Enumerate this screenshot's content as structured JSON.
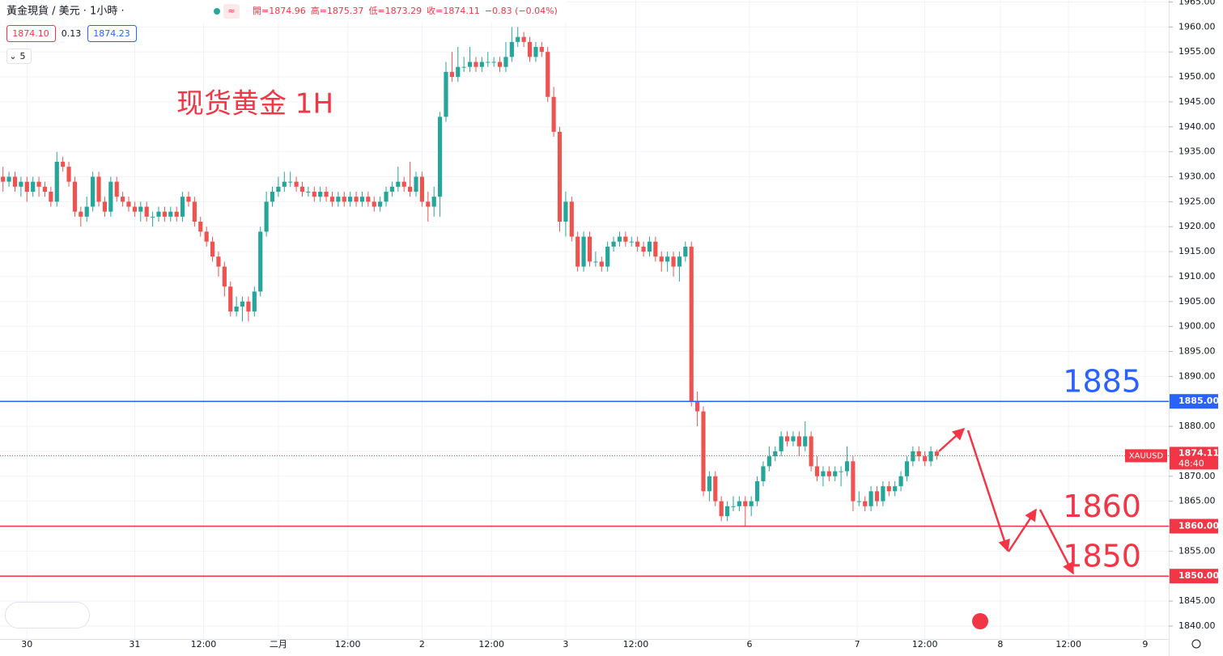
{
  "chart_data": {
    "type": "candlestick",
    "symbol": "黃金現貨 / 美元 · 1小時 ·",
    "ohlc_header": [
      {
        "label": "開=1874.96"
      },
      {
        "label": "高=1875.37"
      },
      {
        "label": "低=1873.29"
      },
      {
        "label": "收=1874.11"
      },
      {
        "label": "−0.83 (−0.04%)"
      }
    ],
    "bid": "1874.10",
    "spread": "0.13",
    "ask": "1874.23",
    "indicator_count": "5",
    "annotation": "现货黄金 1H",
    "up_color": "#26a69a",
    "down_color": "#ef5350",
    "ylim": [
      1837.4,
      1965.4
    ],
    "yticks": [
      {
        "value": 1840,
        "label": "1840.00"
      },
      {
        "value": 1845,
        "label": "1845.00"
      },
      {
        "value": 1850,
        "label": "1850.00"
      },
      {
        "value": 1855,
        "label": "1855.00"
      },
      {
        "value": 1860,
        "label": "1860.00"
      },
      {
        "value": 1865,
        "label": "1865.00"
      },
      {
        "value": 1870,
        "label": "1870.00"
      },
      {
        "value": 1875,
        "label": "1875.00"
      },
      {
        "value": 1880,
        "label": "1880.00"
      },
      {
        "value": 1885,
        "label": "1885.00"
      },
      {
        "value": 1890,
        "label": "1890.00"
      },
      {
        "value": 1895,
        "label": "1895.00"
      },
      {
        "value": 1900,
        "label": "1900.00"
      },
      {
        "value": 1905,
        "label": "1905.00"
      },
      {
        "value": 1910,
        "label": "1910.00"
      },
      {
        "value": 1915,
        "label": "1915.00"
      },
      {
        "value": 1920,
        "label": "1920.00"
      },
      {
        "value": 1925,
        "label": "1925.00"
      },
      {
        "value": 1930,
        "label": "1930.00"
      },
      {
        "value": 1935,
        "label": "1935.00"
      },
      {
        "value": 1940,
        "label": "1940.00"
      },
      {
        "value": 1945,
        "label": "1945.00"
      },
      {
        "value": 1950,
        "label": "1950.00"
      },
      {
        "value": 1955,
        "label": "1955.00"
      },
      {
        "value": 1960,
        "label": "1960.00"
      },
      {
        "value": 1965,
        "label": "1965.00"
      }
    ],
    "xlim": [
      -0.5,
      191.5
    ],
    "xlabels": [
      {
        "index": 4,
        "label": "30"
      },
      {
        "index": 22,
        "label": "31"
      },
      {
        "index": 33.5,
        "label": "12:00"
      },
      {
        "index": 46,
        "label": "二月"
      },
      {
        "index": 57.6,
        "label": "12:00"
      },
      {
        "index": 70,
        "label": "2"
      },
      {
        "index": 81.6,
        "label": "12:00"
      },
      {
        "index": 94,
        "label": "3"
      },
      {
        "index": 105.7,
        "label": "12:00"
      },
      {
        "index": 124.7,
        "label": "6"
      },
      {
        "index": 142.7,
        "label": "7"
      },
      {
        "index": 154,
        "label": "12:00"
      },
      {
        "index": 166.6,
        "label": "8"
      },
      {
        "index": 178,
        "label": "12:00"
      },
      {
        "index": 190.8,
        "label": "9"
      }
    ],
    "levels": [
      {
        "value": 1885,
        "label": "1885",
        "tag": "1885.00",
        "color": "#2962ff"
      },
      {
        "value": 1860,
        "label": "1860",
        "tag": "1860.00",
        "color": "#f23645"
      },
      {
        "value": 1850,
        "label": "1850",
        "tag": "1850.00",
        "color": "#f23645"
      }
    ],
    "last": {
      "value": 1874.11,
      "symbol": "XAUUSD",
      "label": "1874.11",
      "countdown": "48:40"
    },
    "candles": [
      [
        1930,
        1932,
        1927,
        1929
      ],
      [
        1929,
        1931,
        1928,
        1930
      ],
      [
        1930,
        1931,
        1927,
        1928
      ],
      [
        1928,
        1930,
        1926,
        1929
      ],
      [
        1929,
        1930,
        1925,
        1927
      ],
      [
        1927,
        1930,
        1926,
        1929
      ],
      [
        1929,
        1930,
        1926,
        1928
      ],
      [
        1928,
        1929,
        1926,
        1927
      ],
      [
        1927,
        1928,
        1924,
        1925
      ],
      [
        1925,
        1935,
        1924,
        1933
      ],
      [
        1933,
        1934,
        1931,
        1932
      ],
      [
        1932,
        1933,
        1928,
        1929
      ],
      [
        1929,
        1930,
        1922,
        1923
      ],
      [
        1923,
        1924,
        1920,
        1922
      ],
      [
        1922,
        1926,
        1921,
        1924
      ],
      [
        1924,
        1931,
        1923,
        1930
      ],
      [
        1930,
        1931,
        1924,
        1925
      ],
      [
        1925,
        1926,
        1922,
        1923
      ],
      [
        1923,
        1930,
        1922,
        1929
      ],
      [
        1929,
        1930,
        1925,
        1926
      ],
      [
        1926,
        1927,
        1924,
        1925
      ],
      [
        1925,
        1926,
        1923,
        1924
      ],
      [
        1924,
        1925,
        1922,
        1923
      ],
      [
        1923,
        1925,
        1921,
        1924
      ],
      [
        1924,
        1925,
        1921,
        1922
      ],
      [
        1922,
        1923,
        1920,
        1922
      ],
      [
        1922,
        1924,
        1921,
        1923
      ],
      [
        1923,
        1924,
        1921,
        1922
      ],
      [
        1922,
        1924,
        1921,
        1923
      ],
      [
        1923,
        1924,
        1921,
        1922
      ],
      [
        1922,
        1927,
        1921,
        1926
      ],
      [
        1926,
        1927,
        1924,
        1925
      ],
      [
        1925,
        1926,
        1920,
        1921
      ],
      [
        1921,
        1922,
        1918,
        1919
      ],
      [
        1919,
        1920,
        1916,
        1917
      ],
      [
        1917,
        1918,
        1913,
        1914
      ],
      [
        1914,
        1915,
        1910,
        1912
      ],
      [
        1912,
        1913,
        1906,
        1908
      ],
      [
        1908,
        1909,
        1902,
        1903
      ],
      [
        1903,
        1906,
        1902,
        1904
      ],
      [
        1904,
        1906,
        1901,
        1905
      ],
      [
        1905,
        1906,
        1901,
        1903
      ],
      [
        1903,
        1908,
        1902,
        1907
      ],
      [
        1907,
        1920,
        1906,
        1919
      ],
      [
        1919,
        1927,
        1918,
        1925
      ],
      [
        1925,
        1928,
        1924,
        1927
      ],
      [
        1927,
        1930,
        1926,
        1928
      ],
      [
        1928,
        1931,
        1927,
        1929
      ],
      [
        1929,
        1931,
        1928,
        1929
      ],
      [
        1929,
        1930,
        1927,
        1928
      ],
      [
        1928,
        1929,
        1926,
        1927
      ],
      [
        1927,
        1928,
        1926,
        1927
      ],
      [
        1927,
        1928,
        1925,
        1926
      ],
      [
        1926,
        1928,
        1925,
        1927
      ],
      [
        1927,
        1928,
        1925,
        1926
      ],
      [
        1926,
        1927,
        1924,
        1925
      ],
      [
        1925,
        1927,
        1924,
        1926
      ],
      [
        1926,
        1927,
        1924,
        1925
      ],
      [
        1925,
        1927,
        1924,
        1926
      ],
      [
        1926,
        1927,
        1924,
        1925
      ],
      [
        1925,
        1927,
        1924,
        1926
      ],
      [
        1926,
        1927,
        1924,
        1925
      ],
      [
        1925,
        1926,
        1923,
        1924
      ],
      [
        1924,
        1926,
        1923,
        1925
      ],
      [
        1925,
        1928,
        1924,
        1927
      ],
      [
        1927,
        1929,
        1926,
        1928
      ],
      [
        1928,
        1932,
        1927,
        1929
      ],
      [
        1929,
        1930,
        1927,
        1928
      ],
      [
        1928,
        1933,
        1926,
        1927
      ],
      [
        1927,
        1931,
        1926,
        1930
      ],
      [
        1930,
        1931,
        1924,
        1925
      ],
      [
        1925,
        1927,
        1921,
        1924
      ],
      [
        1924,
        1928,
        1922,
        1926
      ],
      [
        1926,
        1943,
        1922,
        1942
      ],
      [
        1942,
        1953,
        1941,
        1951
      ],
      [
        1951,
        1955,
        1949,
        1950
      ],
      [
        1950,
        1956,
        1949,
        1952
      ],
      [
        1952,
        1954,
        1951,
        1952
      ],
      [
        1952,
        1956,
        1951,
        1953
      ],
      [
        1953,
        1954,
        1951,
        1952
      ],
      [
        1952,
        1954,
        1951,
        1953
      ],
      [
        1953,
        1955,
        1952,
        1953
      ],
      [
        1953,
        1954,
        1952,
        1953
      ],
      [
        1953,
        1954,
        1951,
        1952
      ],
      [
        1952,
        1957,
        1951,
        1954
      ],
      [
        1954,
        1960,
        1953,
        1957
      ],
      [
        1957,
        1960,
        1956,
        1958
      ],
      [
        1958,
        1959,
        1956,
        1957
      ],
      [
        1957,
        1958,
        1953,
        1954
      ],
      [
        1954,
        1957,
        1953,
        1956
      ],
      [
        1956,
        1957,
        1954,
        1955
      ],
      [
        1955,
        1956,
        1945,
        1946
      ],
      [
        1946,
        1948,
        1938,
        1939
      ],
      [
        1939,
        1940,
        1919,
        1921
      ],
      [
        1921,
        1927,
        1918,
        1925
      ],
      [
        1925,
        1926,
        1917,
        1918
      ],
      [
        1918,
        1919,
        1911,
        1912
      ],
      [
        1912,
        1919,
        1911,
        1918
      ],
      [
        1918,
        1919,
        1912,
        1913
      ],
      [
        1913,
        1915,
        1912,
        1913
      ],
      [
        1913,
        1914,
        1911,
        1912
      ],
      [
        1912,
        1917,
        1911,
        1916
      ],
      [
        1916,
        1918,
        1915,
        1917
      ],
      [
        1917,
        1919,
        1916,
        1918
      ],
      [
        1918,
        1919,
        1916,
        1917
      ],
      [
        1917,
        1918,
        1916,
        1917
      ],
      [
        1917,
        1918,
        1915,
        1916
      ],
      [
        1916,
        1917,
        1914,
        1915
      ],
      [
        1915,
        1918,
        1914,
        1917
      ],
      [
        1917,
        1918,
        1913,
        1914
      ],
      [
        1914,
        1915,
        1911,
        1913
      ],
      [
        1913,
        1915,
        1911,
        1914
      ],
      [
        1914,
        1915,
        1910,
        1912
      ],
      [
        1912,
        1915,
        1909,
        1914
      ],
      [
        1914,
        1917,
        1913,
        1916
      ],
      [
        1916,
        1917,
        1884,
        1885
      ],
      [
        1885,
        1887,
        1880,
        1883
      ],
      [
        1883,
        1884,
        1866,
        1867
      ],
      [
        1867,
        1871,
        1865,
        1870
      ],
      [
        1870,
        1871,
        1864,
        1865
      ],
      [
        1865,
        1866,
        1861,
        1862
      ],
      [
        1862,
        1865,
        1861,
        1864
      ],
      [
        1864,
        1866,
        1863,
        1864
      ],
      [
        1864,
        1866,
        1863,
        1865
      ],
      [
        1865,
        1866,
        1860,
        1864
      ],
      [
        1864,
        1866,
        1862,
        1865
      ],
      [
        1865,
        1870,
        1864,
        1869
      ],
      [
        1869,
        1873,
        1868,
        1872
      ],
      [
        1872,
        1876,
        1871,
        1874
      ],
      [
        1874,
        1876,
        1873,
        1875
      ],
      [
        1875,
        1879,
        1874,
        1878
      ],
      [
        1878,
        1879,
        1876,
        1877
      ],
      [
        1877,
        1879,
        1876,
        1878
      ],
      [
        1878,
        1879,
        1874,
        1876
      ],
      [
        1876,
        1881,
        1875,
        1878
      ],
      [
        1878,
        1879,
        1871,
        1872
      ],
      [
        1872,
        1874,
        1869,
        1870
      ],
      [
        1870,
        1872,
        1868,
        1871
      ],
      [
        1871,
        1872,
        1869,
        1870
      ],
      [
        1870,
        1872,
        1869,
        1871
      ],
      [
        1871,
        1872,
        1868,
        1871
      ],
      [
        1871,
        1876,
        1870,
        1873
      ],
      [
        1873,
        1874,
        1863,
        1865
      ],
      [
        1865,
        1867,
        1864,
        1865
      ],
      [
        1865,
        1866,
        1863,
        1864
      ],
      [
        1864,
        1868,
        1863,
        1867
      ],
      [
        1867,
        1868,
        1864,
        1865
      ],
      [
        1865,
        1869,
        1864,
        1868
      ],
      [
        1868,
        1869,
        1866,
        1867
      ],
      [
        1867,
        1869,
        1866,
        1868
      ],
      [
        1868,
        1871,
        1867,
        1870
      ],
      [
        1870,
        1874,
        1869,
        1873
      ],
      [
        1873,
        1876,
        1872,
        1875
      ],
      [
        1875,
        1876,
        1873,
        1874
      ],
      [
        1874,
        1875,
        1872,
        1873
      ],
      [
        1873,
        1876,
        1872,
        1875
      ],
      [
        1874.96,
        1875.37,
        1873.29,
        1874.11
      ]
    ]
  }
}
